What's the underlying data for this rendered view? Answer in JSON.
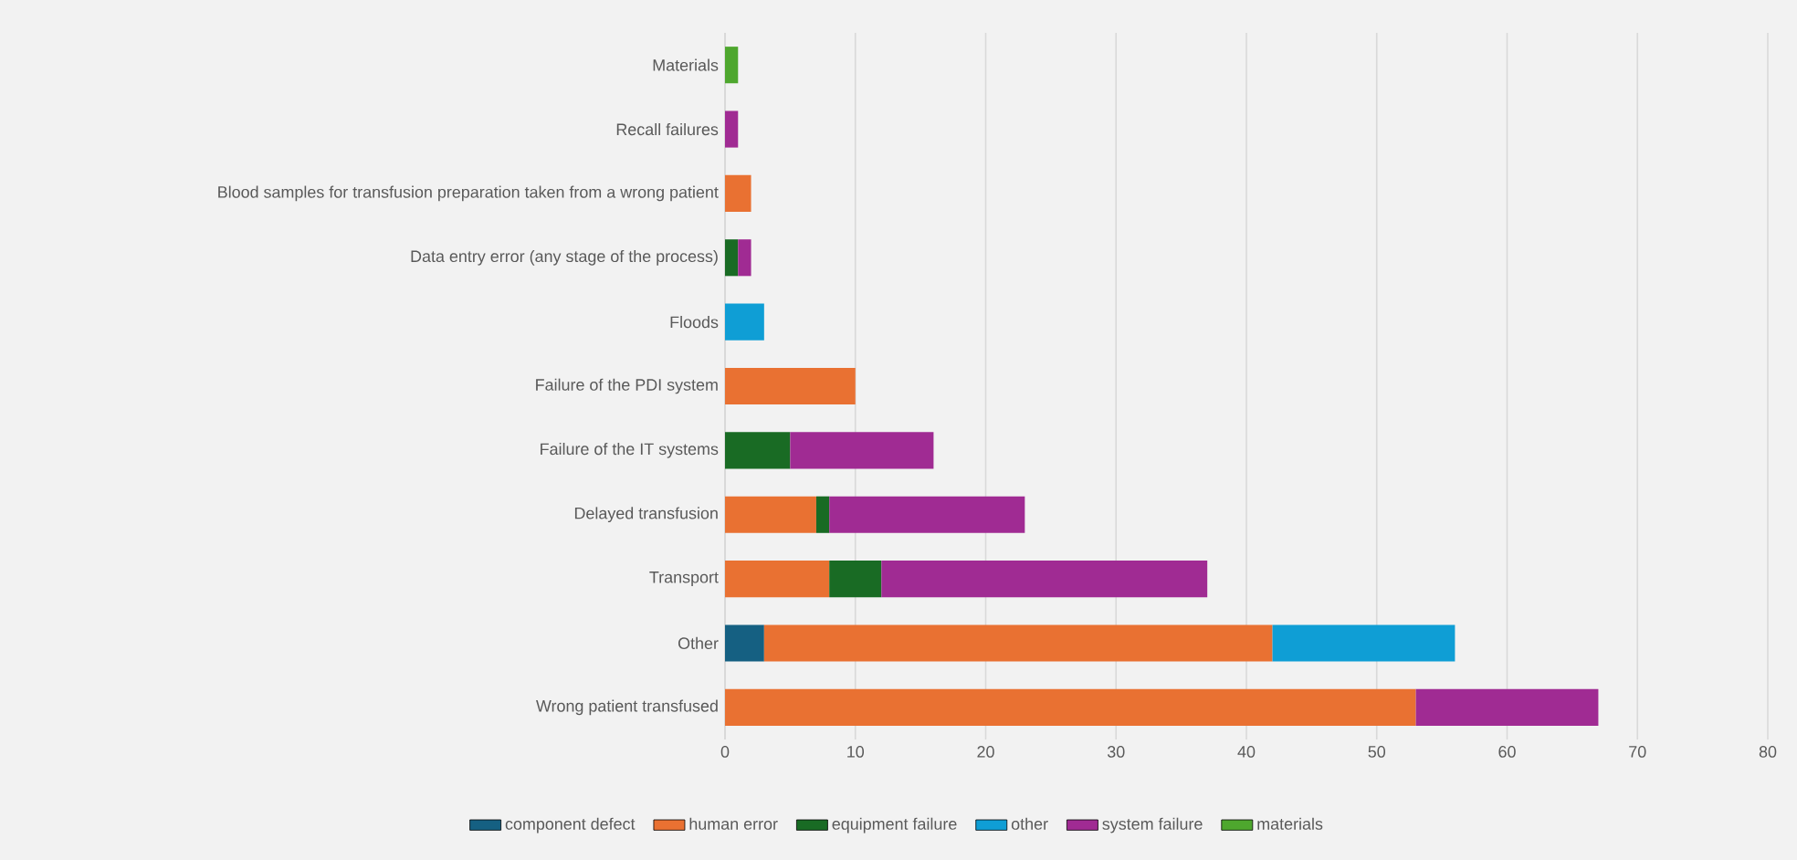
{
  "chart_data": {
    "type": "bar",
    "orientation": "horizontal",
    "stacked": true,
    "categories": [
      "Materials",
      "Recall failures",
      "Blood samples for transfusion preparation taken from a wrong patient",
      "Data entry error (any stage of the process)",
      "Floods",
      "Failure of the PDI system",
      "Failure of the IT systems",
      "Delayed transfusion",
      "Transport",
      "Other",
      "Wrong patient transfused"
    ],
    "series": [
      {
        "name": "component defect",
        "color": "#156082",
        "values": [
          null,
          null,
          null,
          null,
          null,
          null,
          null,
          null,
          null,
          3,
          null
        ]
      },
      {
        "name": "human error",
        "color": "#e97132",
        "values": [
          null,
          null,
          2,
          null,
          null,
          10,
          null,
          7,
          8,
          39,
          53
        ]
      },
      {
        "name": "equipment failure",
        "color": "#196b24",
        "values": [
          null,
          null,
          null,
          1,
          null,
          null,
          5,
          1,
          4,
          null,
          null
        ]
      },
      {
        "name": "other",
        "color": "#0f9ed5",
        "values": [
          null,
          null,
          null,
          null,
          3,
          null,
          null,
          null,
          null,
          14,
          null
        ]
      },
      {
        "name": "system failure",
        "color": "#a02b93",
        "values": [
          null,
          1,
          null,
          1,
          null,
          null,
          11,
          15,
          25,
          null,
          14
        ]
      },
      {
        "name": "materials",
        "color": "#4ea72e",
        "values": [
          1,
          null,
          null,
          null,
          null,
          null,
          null,
          null,
          null,
          null,
          null
        ]
      }
    ],
    "xlim": [
      0,
      80
    ],
    "xticks": [
      0,
      10,
      20,
      30,
      40,
      50,
      60,
      70,
      80
    ],
    "grid": "x",
    "legend": "bottom"
  }
}
